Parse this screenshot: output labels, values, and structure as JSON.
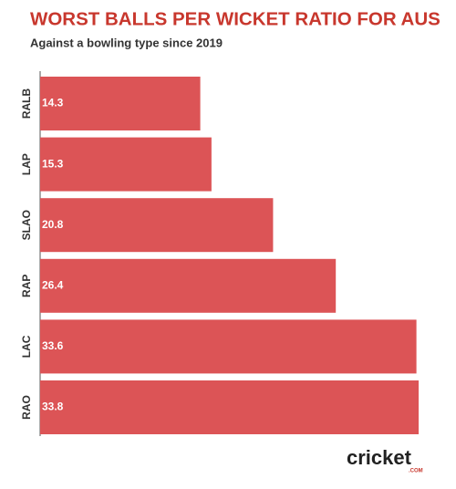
{
  "chart_data": {
    "type": "bar",
    "orientation": "horizontal",
    "title": "WORST BALLS PER WICKET RATIO FOR AUS",
    "subtitle": "Against a bowling type since 2019",
    "categories": [
      "RALB",
      "LAP",
      "SLAO",
      "RAP",
      "LAC",
      "RAO"
    ],
    "values": [
      14.3,
      15.3,
      20.8,
      26.4,
      33.6,
      33.8
    ],
    "color": "#dc5456"
  },
  "logo": {
    "name": "cricket",
    "suffix": ".COM"
  }
}
